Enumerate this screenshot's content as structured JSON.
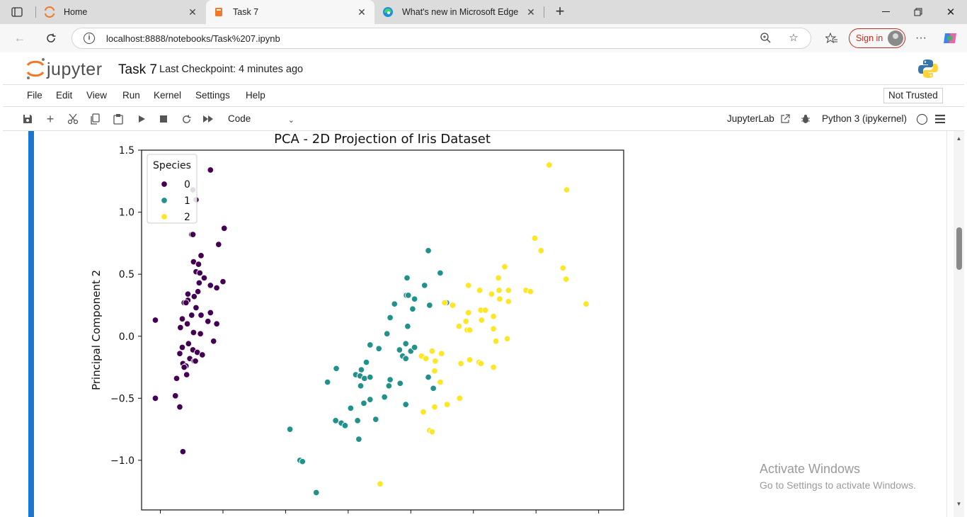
{
  "browser": {
    "tabs": [
      {
        "title": "Home",
        "active": false
      },
      {
        "title": "Task 7",
        "active": true
      },
      {
        "title": "What's new in Microsoft Edge",
        "active": false
      }
    ],
    "url": "localhost:8888/notebooks/Task%207.ipynb",
    "signin_label": "Sign in"
  },
  "jupyter": {
    "logo_text": "jupyter",
    "notebook_name": "Task 7",
    "checkpoint": "Last Checkpoint: 4 minutes ago",
    "menu": [
      "File",
      "Edit",
      "View",
      "Run",
      "Kernel",
      "Settings",
      "Help"
    ],
    "trust_status": "Not Trusted",
    "cell_type": "Code",
    "jupyterlab_label": "JupyterLab",
    "kernel_name": "Python 3 (ipykernel)"
  },
  "watermark": {
    "line1": "Activate Windows",
    "line2": "Go to Settings to activate Windows."
  },
  "colors": {
    "cell_bar": "#1976d2",
    "class0": "#440154",
    "class1": "#21918c",
    "class2": "#fde725"
  },
  "chart_data": {
    "type": "scatter",
    "title": "PCA - 2D Projection of Iris Dataset",
    "xlabel": "",
    "ylabel": "Principal Component 2",
    "ylim": [
      -1.4,
      1.5
    ],
    "xlim": [
      -3.3,
      4.4
    ],
    "yticks": [
      1.5,
      1.0,
      0.5,
      0.0,
      -0.5,
      -1.0
    ],
    "ytick_labels": [
      "1.5",
      "1.0",
      "0.5",
      "0.0",
      "−0.5",
      "−1.0"
    ],
    "xticks": [
      -3,
      -2,
      -1,
      0,
      1,
      2,
      3,
      4
    ],
    "legend": {
      "title": "Species",
      "placement": "top-left",
      "entries": [
        "0",
        "1",
        "2"
      ]
    },
    "series": [
      {
        "name": "0",
        "color": "#440154",
        "points": [
          [
            -2.2,
            1.34
          ],
          [
            -2.48,
            1.18
          ],
          [
            -2.43,
            1.1
          ],
          [
            -2.5,
            0.82
          ],
          [
            -2.48,
            0.82
          ],
          [
            -1.98,
            0.87
          ],
          [
            -2.07,
            0.74
          ],
          [
            -2.35,
            0.65
          ],
          [
            -2.47,
            0.6
          ],
          [
            -2.39,
            0.58
          ],
          [
            -2.43,
            0.52
          ],
          [
            -2.37,
            0.51
          ],
          [
            -2.3,
            0.47
          ],
          [
            -2.2,
            0.41
          ],
          [
            -2.1,
            0.39
          ],
          [
            -2.0,
            0.44
          ],
          [
            -2.38,
            0.43
          ],
          [
            -2.4,
            0.36
          ],
          [
            -2.56,
            0.34
          ],
          [
            -2.46,
            0.32
          ],
          [
            -2.56,
            0.29
          ],
          [
            -2.62,
            0.27
          ],
          [
            -2.59,
            0.27
          ],
          [
            -2.43,
            0.23
          ],
          [
            -2.2,
            0.19
          ],
          [
            -2.35,
            0.17
          ],
          [
            -2.5,
            0.17
          ],
          [
            -2.65,
            0.14
          ],
          [
            -2.24,
            0.12
          ],
          [
            -2.57,
            0.1
          ],
          [
            -2.1,
            0.1
          ],
          [
            -3.08,
            0.13
          ],
          [
            -2.68,
            0.07
          ],
          [
            -2.47,
            0.03
          ],
          [
            -2.36,
            0.02
          ],
          [
            -2.15,
            -0.04
          ],
          [
            -2.55,
            -0.06
          ],
          [
            -2.65,
            -0.09
          ],
          [
            -2.48,
            -0.11
          ],
          [
            -2.41,
            -0.13
          ],
          [
            -2.69,
            -0.14
          ],
          [
            -2.33,
            -0.15
          ],
          [
            -2.53,
            -0.18
          ],
          [
            -2.46,
            -0.2
          ],
          [
            -2.44,
            -0.2
          ],
          [
            -2.64,
            -0.22
          ],
          [
            -2.59,
            -0.24
          ],
          [
            -2.62,
            -0.25
          ],
          [
            -2.58,
            -0.31
          ],
          [
            -2.74,
            -0.34
          ],
          [
            -2.76,
            -0.48
          ],
          [
            -3.08,
            -0.5
          ],
          [
            -2.69,
            -0.57
          ],
          [
            -2.64,
            -0.93
          ]
        ]
      },
      {
        "name": "1",
        "color": "#21918c",
        "points": [
          [
            1.28,
            0.69
          ],
          [
            1.47,
            0.51
          ],
          [
            0.94,
            0.47
          ],
          [
            1.22,
            0.41
          ],
          [
            1.57,
            0.27
          ],
          [
            1.3,
            0.25
          ],
          [
            1.06,
            0.3
          ],
          [
            0.93,
            0.33
          ],
          [
            0.96,
            0.33
          ],
          [
            0.74,
            0.26
          ],
          [
            1.03,
            0.22
          ],
          [
            0.67,
            0.15
          ],
          [
            0.95,
            0.08
          ],
          [
            0.62,
            0.02
          ],
          [
            0.92,
            -0.06
          ],
          [
            0.82,
            -0.11
          ],
          [
            1.0,
            -0.12
          ],
          [
            1.06,
            -0.09
          ],
          [
            0.87,
            -0.16
          ],
          [
            0.92,
            -0.18
          ],
          [
            0.35,
            -0.07
          ],
          [
            0.49,
            -0.1
          ],
          [
            0.29,
            -0.21
          ],
          [
            0.12,
            -0.31
          ],
          [
            0.21,
            -0.27
          ],
          [
            0.19,
            -0.32
          ],
          [
            0.26,
            -0.34
          ],
          [
            0.35,
            -0.33
          ],
          [
            0.2,
            -0.4
          ],
          [
            -0.19,
            -0.26
          ],
          [
            -0.33,
            -0.37
          ],
          [
            0.67,
            -0.35
          ],
          [
            0.65,
            -0.4
          ],
          [
            0.83,
            -0.38
          ],
          [
            0.58,
            -0.49
          ],
          [
            0.35,
            -0.51
          ],
          [
            0.25,
            -0.54
          ],
          [
            0.04,
            -0.58
          ],
          [
            0.44,
            -0.67
          ],
          [
            0.92,
            -0.55
          ],
          [
            1.28,
            -0.33
          ],
          [
            1.36,
            -0.42
          ],
          [
            -0.2,
            -0.68
          ],
          [
            -0.11,
            -0.7
          ],
          [
            -0.05,
            -0.72
          ],
          [
            0.15,
            -0.68
          ],
          [
            0.17,
            -0.83
          ],
          [
            -0.93,
            -0.75
          ],
          [
            -0.77,
            -1.0
          ],
          [
            -0.73,
            -1.01
          ],
          [
            -0.51,
            -1.26
          ]
        ]
      },
      {
        "name": "2",
        "color": "#fde725",
        "points": [
          [
            3.21,
            1.38
          ],
          [
            3.49,
            1.18
          ],
          [
            2.98,
            0.79
          ],
          [
            3.08,
            0.69
          ],
          [
            3.43,
            0.55
          ],
          [
            3.48,
            0.46
          ],
          [
            3.8,
            0.26
          ],
          [
            2.5,
            0.56
          ],
          [
            2.4,
            0.47
          ],
          [
            1.92,
            0.41
          ],
          [
            2.1,
            0.37
          ],
          [
            2.29,
            0.34
          ],
          [
            2.41,
            0.37
          ],
          [
            2.56,
            0.37
          ],
          [
            2.84,
            0.37
          ],
          [
            2.91,
            0.36
          ],
          [
            2.42,
            0.3
          ],
          [
            2.56,
            0.28
          ],
          [
            1.67,
            0.25
          ],
          [
            1.54,
            0.27
          ],
          [
            1.92,
            0.19
          ],
          [
            2.12,
            0.21
          ],
          [
            2.19,
            0.21
          ],
          [
            2.32,
            0.16
          ],
          [
            1.88,
            0.12
          ],
          [
            2.13,
            0.13
          ],
          [
            1.77,
            0.08
          ],
          [
            1.9,
            0.05
          ],
          [
            1.94,
            0.05
          ],
          [
            2.32,
            0.06
          ],
          [
            2.54,
            -0.02
          ],
          [
            2.36,
            -0.04
          ],
          [
            1.34,
            -0.12
          ],
          [
            1.49,
            -0.14
          ],
          [
            1.17,
            -0.16
          ],
          [
            1.24,
            -0.18
          ],
          [
            1.39,
            -0.2
          ],
          [
            1.8,
            -0.22
          ],
          [
            2.09,
            -0.21
          ],
          [
            1.94,
            -0.19
          ],
          [
            2.32,
            -0.25
          ],
          [
            2.12,
            -0.22
          ],
          [
            1.38,
            -0.28
          ],
          [
            1.47,
            -0.37
          ],
          [
            1.78,
            -0.5
          ],
          [
            1.58,
            -0.55
          ],
          [
            1.38,
            -0.57
          ],
          [
            1.2,
            -0.61
          ],
          [
            1.3,
            -0.76
          ],
          [
            1.34,
            -0.77
          ],
          [
            0.51,
            -1.19
          ]
        ]
      }
    ]
  }
}
